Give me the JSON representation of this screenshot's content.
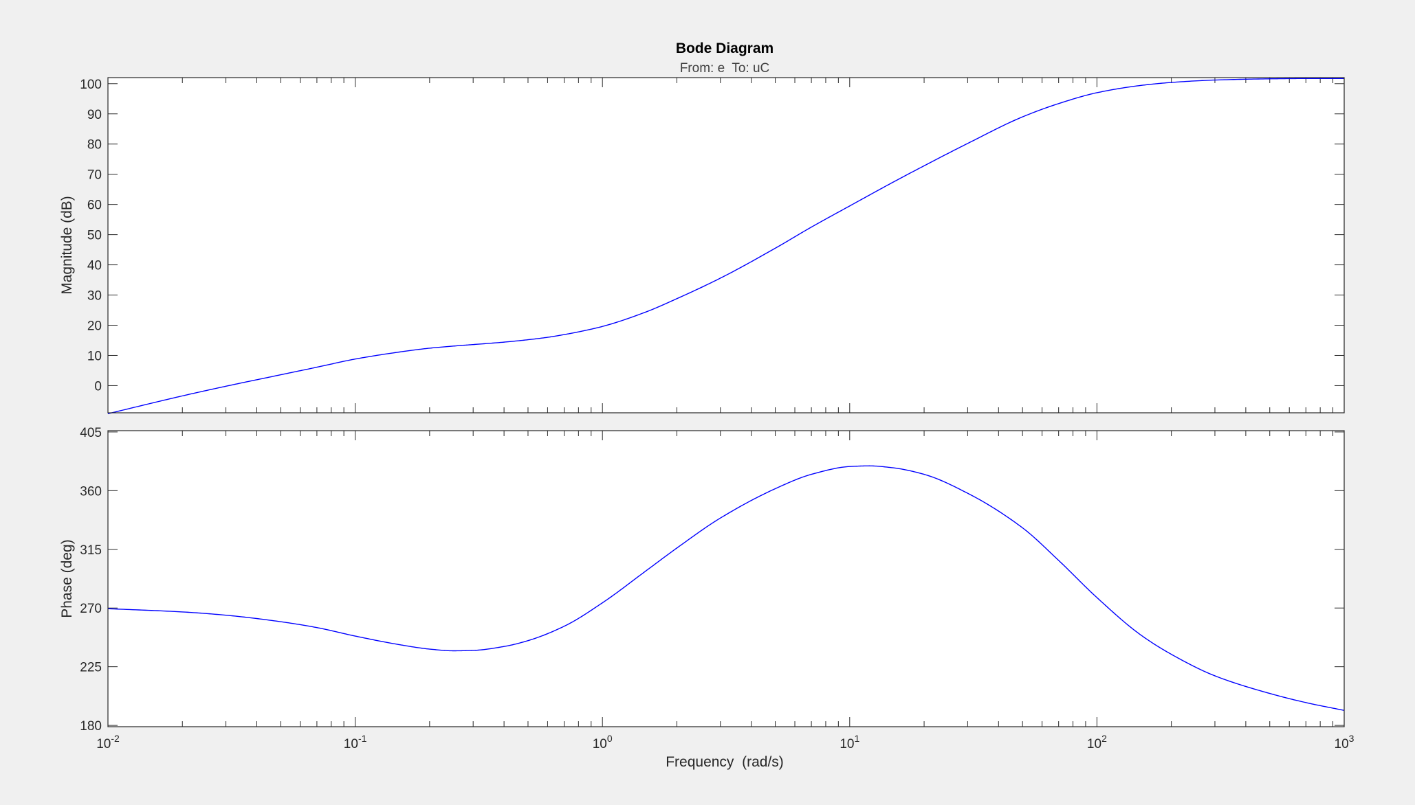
{
  "figure": {
    "title": "Bode Diagram",
    "subtitle": "From: e  To: uC",
    "xlabel": "Frequency  (rad/s)"
  },
  "colors": {
    "background": "#f0f0f0",
    "axes": "#ffffff",
    "axis_line": "#262626",
    "series": "#0000ff"
  },
  "chart_data": [
    {
      "type": "line",
      "panel": "magnitude",
      "title": "",
      "xlabel": "",
      "ylabel": "Magnitude (dB)",
      "xscale": "log",
      "xlim": [
        0.01,
        1000
      ],
      "ylim": [
        -9,
        102
      ],
      "yticks": [
        0,
        10,
        20,
        30,
        40,
        50,
        60,
        70,
        80,
        90,
        100
      ],
      "ytick_labels": [
        "0",
        "10",
        "20",
        "30",
        "40",
        "50",
        "60",
        "70",
        "80",
        "90",
        "100"
      ],
      "grid": false,
      "series": [
        {
          "x": [
            0.01,
            0.02,
            0.03,
            0.05,
            0.07,
            0.1,
            0.15,
            0.2,
            0.25,
            0.3,
            0.4,
            0.5,
            0.6,
            0.7,
            0.8,
            1,
            1.5,
            2,
            3,
            5,
            7,
            10,
            15,
            20,
            30,
            50,
            70,
            100,
            150,
            200,
            300,
            500,
            700,
            1000
          ],
          "y": [
            -9.3,
            -3.4,
            -0.2,
            3.6,
            6.1,
            8.8,
            11.1,
            12.4,
            13.1,
            13.6,
            14.4,
            15.2,
            16.0,
            16.9,
            17.8,
            19.6,
            24.4,
            28.8,
            35.6,
            45.5,
            52.5,
            59.5,
            67.4,
            72.8,
            80.2,
            89.0,
            93.4,
            97.0,
            99.4,
            100.4,
            101.2,
            101.6,
            101.7,
            101.7
          ]
        }
      ]
    },
    {
      "type": "line",
      "panel": "phase",
      "title": "",
      "xlabel": "Frequency  (rad/s)",
      "ylabel": "Phase (deg)",
      "xscale": "log",
      "xlim": [
        0.01,
        1000
      ],
      "ylim": [
        179,
        406
      ],
      "yticks": [
        180,
        225,
        270,
        315,
        360,
        405
      ],
      "ytick_labels": [
        "180",
        "225",
        "270",
        "315",
        "360",
        "405"
      ],
      "xticks": [
        0.01,
        0.1,
        1,
        10,
        100,
        1000
      ],
      "xtick_labels": [
        {
          "base": "10",
          "exp": "-2"
        },
        {
          "base": "10",
          "exp": "-1"
        },
        {
          "base": "10",
          "exp": "0"
        },
        {
          "base": "10",
          "exp": "1"
        },
        {
          "base": "10",
          "exp": "2"
        },
        {
          "base": "10",
          "exp": "3"
        }
      ],
      "grid": false,
      "series": [
        {
          "x": [
            0.01,
            0.02,
            0.03,
            0.05,
            0.07,
            0.1,
            0.15,
            0.2,
            0.25,
            0.3,
            0.4,
            0.5,
            0.7,
            1,
            1.5,
            2,
            3,
            5,
            7,
            10,
            12,
            15,
            20,
            30,
            50,
            70,
            100,
            150,
            200,
            300,
            500,
            700,
            1000
          ],
          "y": [
            269.5,
            267.0,
            264.5,
            259.5,
            255.0,
            248.5,
            242.0,
            238.5,
            237.2,
            237.5,
            240.5,
            245.0,
            256.0,
            274.0,
            298.5,
            316.0,
            339.0,
            361.5,
            372.5,
            378.5,
            379.0,
            377.5,
            372.5,
            358.0,
            331.5,
            306.5,
            278.0,
            249.5,
            234.5,
            218.0,
            204.5,
            197.5,
            191.5
          ]
        }
      ]
    }
  ]
}
